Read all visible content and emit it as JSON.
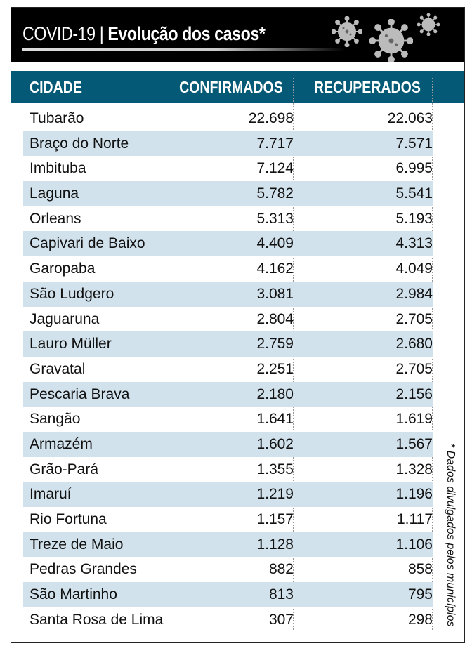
{
  "header": {
    "prefix": "COVID-19",
    "separator": "|",
    "title": "Evolução dos casos*"
  },
  "table": {
    "columns": [
      "CIDADE",
      "CONFIRMADOS",
      "RECUPERADOS"
    ],
    "rows": [
      {
        "city": "Tubarão",
        "confirmed": "22.698",
        "recovered": "22.063"
      },
      {
        "city": "Braço do Norte",
        "confirmed": "7.717",
        "recovered": "7.571"
      },
      {
        "city": "Imbituba",
        "confirmed": "7.124",
        "recovered": "6.995"
      },
      {
        "city": "Laguna",
        "confirmed": "5.782",
        "recovered": "5.541"
      },
      {
        "city": "Orleans",
        "confirmed": "5.313",
        "recovered": "5.193"
      },
      {
        "city": "Capivari de Baixo",
        "confirmed": "4.409",
        "recovered": "4.313"
      },
      {
        "city": "Garopaba",
        "confirmed": "4.162",
        "recovered": "4.049"
      },
      {
        "city": "São Ludgero",
        "confirmed": "3.081",
        "recovered": "2.984"
      },
      {
        "city": "Jaguaruna",
        "confirmed": "2.804",
        "recovered": "2.705"
      },
      {
        "city": "Lauro Müller",
        "confirmed": "2.759",
        "recovered": "2.680"
      },
      {
        "city": "Gravatal",
        "confirmed": "2.251",
        "recovered": "2.705"
      },
      {
        "city": "Pescaria Brava",
        "confirmed": "2.180",
        "recovered": "2.156"
      },
      {
        "city": "Sangão",
        "confirmed": "1.641",
        "recovered": "1.619"
      },
      {
        "city": "Armazém",
        "confirmed": "1.602",
        "recovered": "1.567"
      },
      {
        "city": "Grão-Pará",
        "confirmed": "1.355",
        "recovered": "1.328"
      },
      {
        "city": "Imaruí",
        "confirmed": "1.219",
        "recovered": "1.196"
      },
      {
        "city": "Rio Fortuna",
        "confirmed": "1.157",
        "recovered": "1.117"
      },
      {
        "city": "Treze de Maio",
        "confirmed": "1.128",
        "recovered": "1.106"
      },
      {
        "city": "Pedras Grandes",
        "confirmed": "882",
        "recovered": "858"
      },
      {
        "city": "São Martinho",
        "confirmed": "813",
        "recovered": "795"
      },
      {
        "city": "Santa Rosa de Lima",
        "confirmed": "307",
        "recovered": "298"
      }
    ]
  },
  "footnote": "* Dados divulgados pelos municípios",
  "colors": {
    "header_bg": "#000000",
    "table_header": "#045a76",
    "stripe": "#d2e2ec"
  }
}
